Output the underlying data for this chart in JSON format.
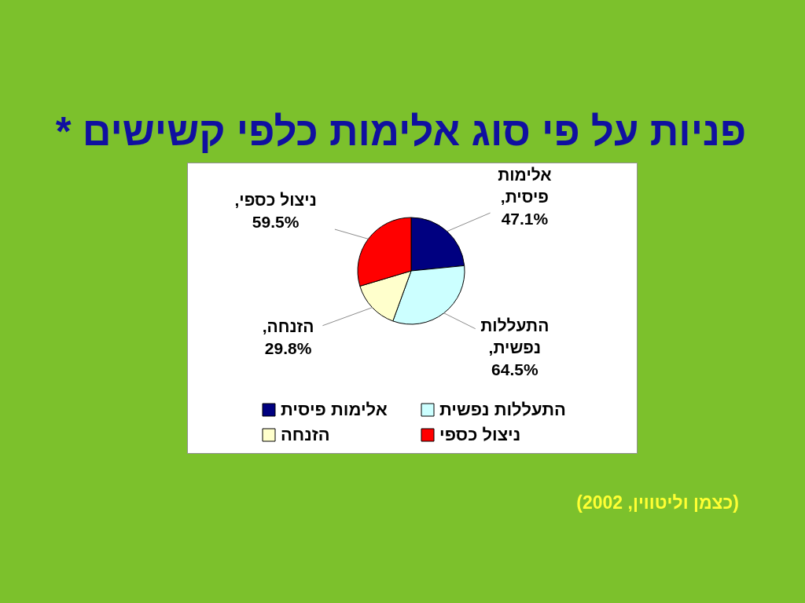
{
  "chart_data": {
    "type": "pie",
    "title": "פניות על פי סוג אלימות כלפי קשישים *",
    "categories": [
      "אלימות פיסית",
      "התעללות נפשית",
      "הזנחה",
      "ניצול כספי"
    ],
    "values": [
      47.1,
      64.5,
      29.8,
      59.5
    ],
    "colors": [
      "#000080",
      "#ccffff",
      "#ffffcc",
      "#ff0000"
    ],
    "value_labels": [
      "אלימות פיסית, 47.1%",
      "התעללות נפשית, 64.5%",
      "הזנחה, 29.8%",
      "ניצול כספי, 59.5%"
    ],
    "legend": "bottom",
    "annotations": [
      "(כצמן וליטווין, 2002)"
    ]
  }
}
